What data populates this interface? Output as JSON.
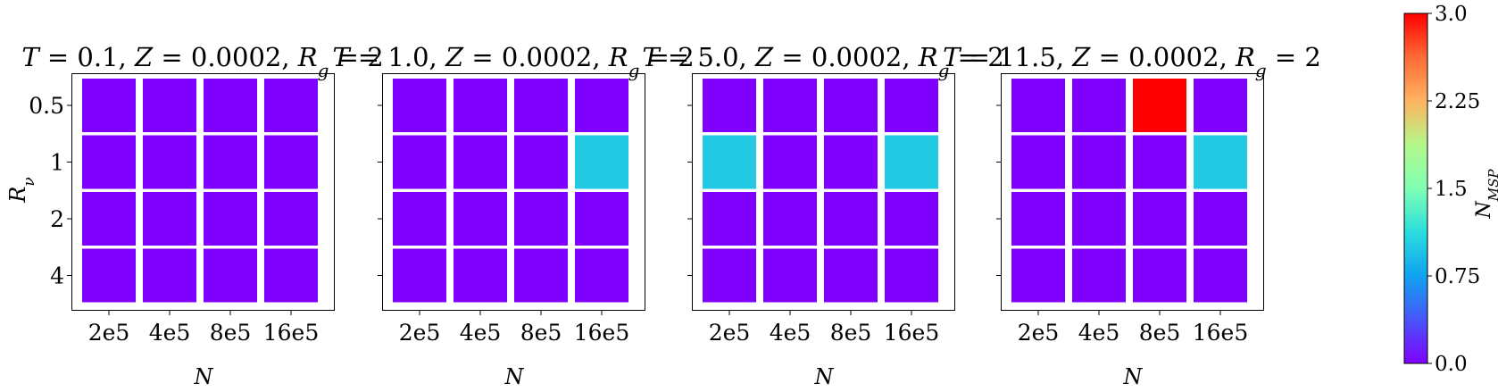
{
  "chart_data": [
    {
      "type": "heatmap",
      "title": "T = 0.1, Z = 0.0002, R_g = 2",
      "title_parts": {
        "T": "0.1",
        "Z": "0.0002",
        "Rg": "2"
      },
      "x_categories": [
        "2e5",
        "4e5",
        "8e5",
        "16e5"
      ],
      "y_categories": [
        "0.5",
        "1",
        "2",
        "4"
      ],
      "xlabel": "N",
      "ylabel": "R_ν",
      "values": [
        [
          0,
          0,
          0,
          0
        ],
        [
          0,
          0,
          0,
          0
        ],
        [
          0,
          0,
          0,
          0
        ],
        [
          0,
          0,
          0,
          0
        ]
      ]
    },
    {
      "type": "heatmap",
      "title": "T = 1.0, Z = 0.0002, R_g = 2",
      "title_parts": {
        "T": "1.0",
        "Z": "0.0002",
        "Rg": "2"
      },
      "x_categories": [
        "2e5",
        "4e5",
        "8e5",
        "16e5"
      ],
      "y_categories": [
        "0.5",
        "1",
        "2",
        "4"
      ],
      "xlabel": "N",
      "ylabel": "",
      "values": [
        [
          0,
          0,
          0,
          0
        ],
        [
          0,
          0,
          0,
          1
        ],
        [
          0,
          0,
          0,
          0
        ],
        [
          0,
          0,
          0,
          0
        ]
      ]
    },
    {
      "type": "heatmap",
      "title": "T = 5.0, Z = 0.0002, R_g = 2",
      "title_parts": {
        "T": "5.0",
        "Z": "0.0002",
        "Rg": "2"
      },
      "x_categories": [
        "2e5",
        "4e5",
        "8e5",
        "16e5"
      ],
      "y_categories": [
        "0.5",
        "1",
        "2",
        "4"
      ],
      "xlabel": "N",
      "ylabel": "",
      "values": [
        [
          0,
          0,
          0,
          0
        ],
        [
          1,
          0,
          0,
          1
        ],
        [
          0,
          0,
          0,
          0
        ],
        [
          0,
          0,
          0,
          0
        ]
      ]
    },
    {
      "type": "heatmap",
      "title": "T = 11.5, Z = 0.0002, R_g = 2",
      "title_parts": {
        "T": "11.5",
        "Z": "0.0002",
        "Rg": "2"
      },
      "x_categories": [
        "2e5",
        "4e5",
        "8e5",
        "16e5"
      ],
      "y_categories": [
        "0.5",
        "1",
        "2",
        "4"
      ],
      "xlabel": "N",
      "ylabel": "",
      "values": [
        [
          0,
          0,
          3,
          0
        ],
        [
          0,
          0,
          0,
          1
        ],
        [
          0,
          0,
          0,
          0
        ],
        [
          0,
          0,
          0,
          0
        ]
      ]
    }
  ],
  "colorbar": {
    "label": "N_MSP",
    "label_main": "N",
    "label_sub": "MSP",
    "colormap": "rainbow",
    "range": [
      0.0,
      3.0
    ],
    "ticks": [
      "0.0",
      "0.75",
      "1.5",
      "2.25",
      "3.0"
    ]
  }
}
